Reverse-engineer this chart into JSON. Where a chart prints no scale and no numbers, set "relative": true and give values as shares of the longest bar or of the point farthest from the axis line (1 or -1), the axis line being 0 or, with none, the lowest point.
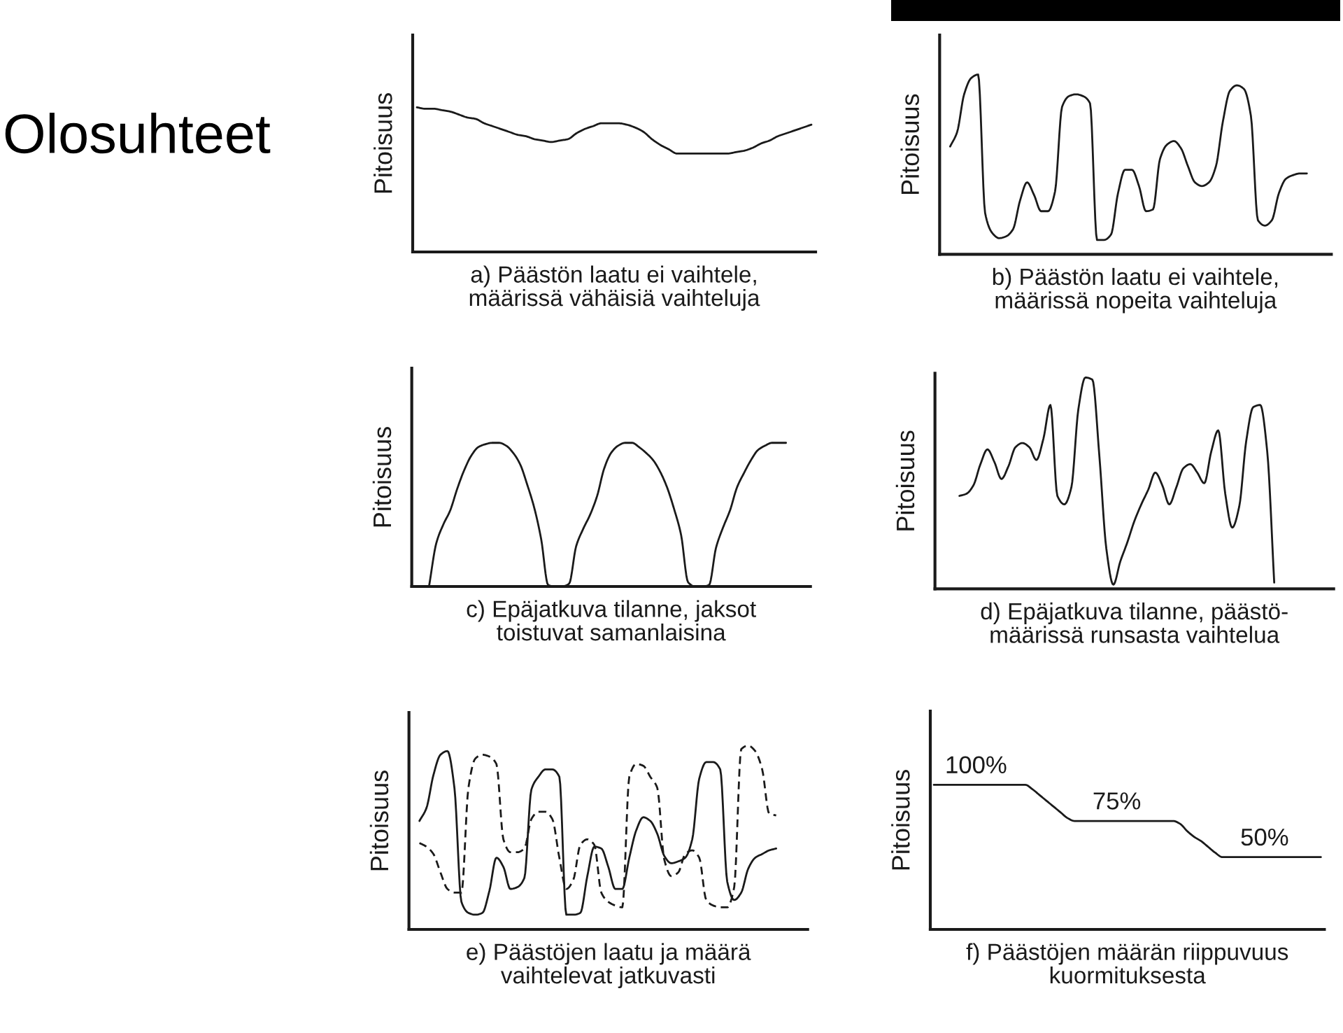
{
  "chart_data": [
    {
      "type": "other",
      "title": "Olosuhteet"
    },
    {
      "type": "line",
      "relative": true,
      "ylabel": "Pitoisuus",
      "xlabel": "a) Päästön laatu ei vaihtele,\nmäärissä vähäisiä vaihteluja",
      "color": "#1a1a1a",
      "categories": [
        null,
        null,
        null,
        null,
        null,
        null,
        null,
        null,
        null,
        null,
        null,
        null,
        null,
        null,
        null,
        null,
        null,
        null,
        null,
        null,
        null,
        null,
        null,
        null,
        null,
        null,
        null,
        null,
        null,
        null,
        null,
        null,
        null,
        null,
        null,
        null,
        null,
        null,
        null,
        null,
        null,
        null,
        null,
        null,
        null,
        null,
        null,
        null
      ],
      "values": [
        1.0,
        0.99,
        0.99,
        0.98,
        0.97,
        0.95,
        0.93,
        0.92,
        0.89,
        0.87,
        0.85,
        0.83,
        0.81,
        0.8,
        0.78,
        0.77,
        0.76,
        0.77,
        0.78,
        0.82,
        0.85,
        0.87,
        0.89,
        0.89,
        0.89,
        0.88,
        0.86,
        0.83,
        0.78,
        0.74,
        0.71,
        0.68,
        0.68,
        0.68,
        0.68,
        0.68,
        0.68,
        0.68,
        0.69,
        0.7,
        0.72,
        0.75,
        0.77,
        0.8,
        0.82,
        0.84,
        0.86,
        0.88
      ]
    },
    {
      "type": "line",
      "relative": true,
      "ylabel": "Pitoisuus",
      "xlabel": "b) Päästön laatu ei vaihtele,\nmäärissä nopeita vaihteluja",
      "color": "#1a1a1a",
      "categories": [
        null,
        null,
        null,
        null,
        null,
        null,
        null,
        null,
        null,
        null,
        null,
        null,
        null,
        null,
        null,
        null,
        null,
        null,
        null,
        null,
        null,
        null,
        null,
        null,
        null,
        null,
        null,
        null,
        null,
        null,
        null,
        null,
        null,
        null,
        null,
        null,
        null,
        null,
        null,
        null,
        null,
        null,
        null,
        null,
        null,
        null,
        null,
        null,
        null,
        null,
        null,
        null,
        null,
        null,
        null,
        null
      ],
      "values": [
        null,
        0.6,
        0.68,
        0.89,
        0.98,
        1.0,
        0.23,
        0.12,
        0.09,
        0.1,
        0.14,
        0.3,
        0.4,
        0.33,
        0.24,
        0.24,
        0.35,
        0.82,
        0.88,
        0.89,
        0.88,
        0.84,
        0.08,
        0.08,
        0.11,
        0.34,
        0.47,
        0.47,
        0.38,
        0.24,
        0.25,
        0.53,
        0.61,
        0.63,
        0.59,
        0.49,
        0.4,
        0.38,
        0.4,
        0.49,
        0.74,
        0.91,
        0.94,
        0.92,
        0.77,
        0.19,
        0.16,
        0.19,
        0.34,
        0.42,
        0.44,
        0.45,
        0.45,
        null,
        null,
        null
      ]
    },
    {
      "type": "line",
      "relative": true,
      "ylabel": "Pitoisuus",
      "xlabel": "c) Epäjatkuva tilanne, jaksot\ntoistuvat samanlaisina",
      "color": "#1a1a1a",
      "categories": [
        null,
        null,
        null,
        null,
        null,
        null,
        null,
        null,
        null,
        null,
        null,
        null,
        null,
        null,
        null,
        null,
        null,
        null,
        null,
        null,
        null,
        null,
        null,
        null,
        null,
        null,
        null,
        null,
        null,
        null,
        null,
        null,
        null,
        null,
        null,
        null,
        null,
        null,
        null,
        null,
        null,
        null,
        null,
        null,
        null,
        null,
        null,
        null,
        null,
        null,
        null,
        null,
        null,
        null,
        null,
        null,
        null
      ],
      "values": [
        null,
        null,
        0.01,
        0.3,
        0.43,
        0.53,
        0.68,
        0.81,
        0.91,
        0.97,
        0.99,
        1.0,
        1.0,
        0.98,
        0.93,
        0.85,
        0.71,
        0.55,
        0.33,
        0.01,
        0,
        0,
        0.02,
        0.28,
        0.4,
        0.5,
        0.63,
        0.82,
        0.93,
        0.98,
        1.0,
        1.0,
        0.97,
        0.93,
        0.88,
        0.8,
        0.69,
        0.54,
        0.36,
        0.03,
        0,
        0,
        0.01,
        0.27,
        0.41,
        0.53,
        0.69,
        0.79,
        0.88,
        0.95,
        0.98,
        1.0,
        1.0,
        1.0,
        null,
        null,
        null
      ]
    },
    {
      "type": "line",
      "relative": true,
      "ylabel": "Pitoisuus",
      "xlabel": "d) Epäjatkuva tilanne, päästö-\nmäärissä runsasta vaihtelua",
      "color": "#1a1a1a",
      "categories": [
        null,
        null,
        null,
        null,
        null,
        null,
        null,
        null,
        null,
        null,
        null,
        null,
        null,
        null,
        null,
        null,
        null,
        null,
        null,
        null,
        null,
        null,
        null,
        null,
        null,
        null,
        null,
        null,
        null,
        null,
        null,
        null,
        null,
        null,
        null,
        null,
        null,
        null,
        null,
        null,
        null,
        null,
        null,
        null,
        null,
        null,
        null,
        null,
        null,
        null,
        null,
        null,
        null,
        null,
        null,
        null,
        null
      ],
      "values": [
        null,
        null,
        null,
        0.44,
        0.45,
        0.49,
        0.59,
        0.66,
        0.6,
        0.52,
        0.58,
        0.67,
        0.69,
        0.67,
        0.61,
        0.71,
        0.87,
        0.44,
        0.4,
        0.48,
        0.85,
        1.0,
        0.99,
        0.63,
        0.19,
        0.02,
        0.13,
        0.22,
        0.32,
        0.4,
        0.47,
        0.55,
        0.49,
        0.4,
        0.48,
        0.57,
        0.59,
        0.55,
        0.5,
        0.65,
        0.75,
        0.45,
        0.29,
        0.39,
        0.7,
        0.86,
        0.87,
        0.65,
        0.03,
        null,
        null,
        null,
        null,
        null,
        null,
        null,
        null
      ]
    },
    {
      "type": "line",
      "relative": true,
      "ylabel": "Pitoisuus",
      "xlabel": "e) Päästöjen laatu ja määrä\nvaihtelevat jatkuvasti",
      "categories": [
        null,
        null,
        null,
        null,
        null,
        null,
        null,
        null,
        null,
        null,
        null,
        null,
        null,
        null,
        null,
        null,
        null,
        null,
        null,
        null,
        null,
        null,
        null,
        null,
        null,
        null,
        null,
        null,
        null,
        null,
        null,
        null,
        null,
        null,
        null,
        null,
        null,
        null,
        null,
        null,
        null,
        null,
        null,
        null,
        null,
        null,
        null,
        null,
        null,
        null,
        null,
        null,
        null,
        null,
        null,
        null,
        null
      ],
      "series": [
        {
          "color": "#1a1a1a",
          "line_style": "solid",
          "values": [
            null,
            0.59,
            0.66,
            0.84,
            0.95,
            0.97,
            0.77,
            0.15,
            0.09,
            0.08,
            0.09,
            0.21,
            0.39,
            0.34,
            0.22,
            0.23,
            0.28,
            0.76,
            0.83,
            0.87,
            0.87,
            0.83,
            0.08,
            0.08,
            0.09,
            0.29,
            0.45,
            0.44,
            0.34,
            0.22,
            0.22,
            0.39,
            0.54,
            0.61,
            0.59,
            0.52,
            0.4,
            0.36,
            0.37,
            0.39,
            0.49,
            0.82,
            0.91,
            0.91,
            0.87,
            0.26,
            0.16,
            0.2,
            0.33,
            0.39,
            0.41,
            0.43,
            0.44,
            null,
            null,
            null,
            null
          ]
        },
        {
          "color": "#1a1a1a",
          "line_style": "dashed",
          "values": [
            null,
            0.47,
            0.45,
            0.41,
            0.31,
            0.22,
            0.2,
            0.2,
            0.77,
            0.93,
            0.95,
            0.94,
            0.9,
            0.49,
            0.42,
            0.42,
            0.44,
            0.6,
            0.64,
            0.64,
            0.6,
            0.39,
            0.22,
            0.27,
            0.46,
            0.49,
            0.46,
            0.2,
            0.15,
            0.13,
            0.12,
            0.83,
            0.9,
            0.89,
            0.83,
            0.77,
            0.38,
            0.29,
            0.31,
            0.41,
            0.43,
            0.39,
            0.16,
            0.13,
            0.12,
            0.12,
            0.23,
            0.98,
            1.0,
            0.97,
            0.87,
            0.63,
            0.62,
            null,
            null,
            null,
            null
          ]
        }
      ]
    },
    {
      "type": "line",
      "tick_labels": false,
      "ylabel": "Pitoisuus",
      "xlabel": "f) Päästöjen määrän riippuvuus\nkuormituksesta",
      "color": "#1a1a1a",
      "categories": [
        null,
        null,
        null,
        null,
        null,
        null,
        null,
        null,
        null,
        null,
        null,
        null,
        null,
        null,
        null,
        null,
        null,
        null,
        null,
        null,
        null,
        null,
        null,
        null,
        null,
        null,
        null,
        null,
        null,
        null,
        null,
        null,
        null,
        null,
        null,
        null,
        null,
        null,
        null,
        null,
        null,
        null,
        null,
        null,
        null,
        null,
        null,
        null,
        null,
        null,
        null,
        null,
        null,
        null,
        null,
        null
      ],
      "values": [
        100,
        100,
        100,
        100,
        100,
        100,
        100,
        100,
        100,
        100,
        100,
        100,
        100,
        100,
        97,
        93,
        89,
        85,
        81,
        77,
        75,
        75,
        75,
        75,
        75,
        75,
        75,
        75,
        75,
        75,
        75,
        75,
        75,
        75,
        75,
        73,
        68,
        64,
        61,
        57,
        53,
        50,
        50,
        50,
        50,
        50,
        50,
        50,
        50,
        50,
        50,
        50,
        50,
        50,
        50,
        50
      ],
      "value_labels": [
        null,
        null,
        null,
        null,
        null,
        null,
        "100%",
        null,
        null,
        null,
        null,
        null,
        null,
        null,
        null,
        null,
        null,
        null,
        null,
        null,
        null,
        null,
        null,
        null,
        null,
        null,
        "75%",
        null,
        null,
        null,
        null,
        null,
        null,
        null,
        null,
        null,
        null,
        null,
        null,
        null,
        null,
        null,
        null,
        null,
        null,
        null,
        null,
        "50%",
        null,
        null,
        null,
        null,
        null,
        null,
        null,
        null
      ]
    }
  ]
}
